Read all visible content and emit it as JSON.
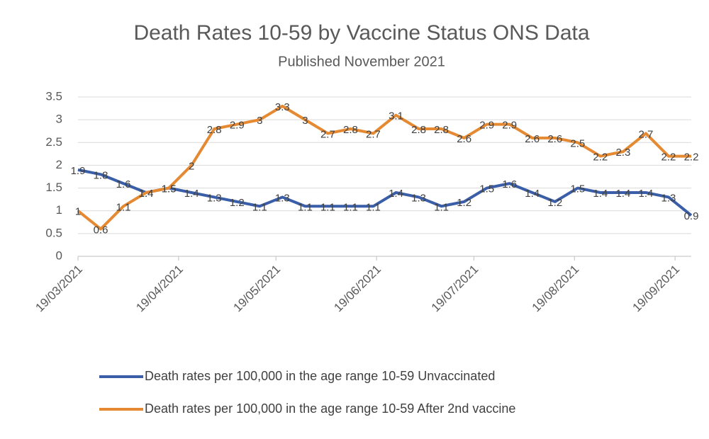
{
  "chart_data": {
    "type": "line",
    "title": "Death Rates 10-59  by Vaccine Status ONS Data",
    "subtitle": "Published November 2021",
    "x": [
      "19/03/2021",
      "26/03/2021",
      "02/04/2021",
      "09/04/2021",
      "16/04/2021",
      "23/04/2021",
      "30/04/2021",
      "07/05/2021",
      "14/05/2021",
      "21/05/2021",
      "28/05/2021",
      "04/06/2021",
      "11/06/2021",
      "18/06/2021",
      "25/06/2021",
      "02/07/2021",
      "09/07/2021",
      "16/07/2021",
      "23/07/2021",
      "30/07/2021",
      "06/08/2021",
      "13/08/2021",
      "20/08/2021",
      "27/08/2021",
      "03/09/2021",
      "10/09/2021",
      "17/09/2021",
      "24/09/2021"
    ],
    "xlim": [
      "19/03/2021",
      "24/09/2021"
    ],
    "xticks": [
      "19/03/2021",
      "19/04/2021",
      "19/05/2021",
      "19/06/2021",
      "19/07/2021",
      "19/08/2021",
      "19/09/2021"
    ],
    "ylim": [
      0,
      3.5
    ],
    "yticks": [
      0,
      0.5,
      1,
      1.5,
      2,
      2.5,
      3,
      3.5
    ],
    "grid": true,
    "series": [
      {
        "name": "Death rates per 100,000 in the age range 10-59 Unvaccinated",
        "color": "#3a5fa8",
        "values": [
          1.9,
          1.8,
          1.6,
          1.4,
          1.5,
          1.4,
          1.3,
          1.2,
          1.1,
          1.3,
          1.1,
          1.1,
          1.1,
          1.1,
          1.4,
          1.3,
          1.1,
          1.2,
          1.5,
          1.6,
          1.4,
          1.2,
          1.5,
          1.4,
          1.4,
          1.4,
          1.3,
          0.9
        ]
      },
      {
        "name": "Death rates per 100,000 in the age range 10-59 After 2nd  vaccine",
        "color": "#e58a32",
        "values": [
          1,
          0.6,
          1.1,
          1.4,
          1.5,
          2,
          2.8,
          2.9,
          3,
          3.3,
          3,
          2.7,
          2.8,
          2.7,
          3.1,
          2.8,
          2.8,
          2.6,
          2.9,
          2.9,
          2.6,
          2.6,
          2.5,
          2.2,
          2.3,
          2.7,
          2.2,
          2.2
        ]
      }
    ]
  }
}
